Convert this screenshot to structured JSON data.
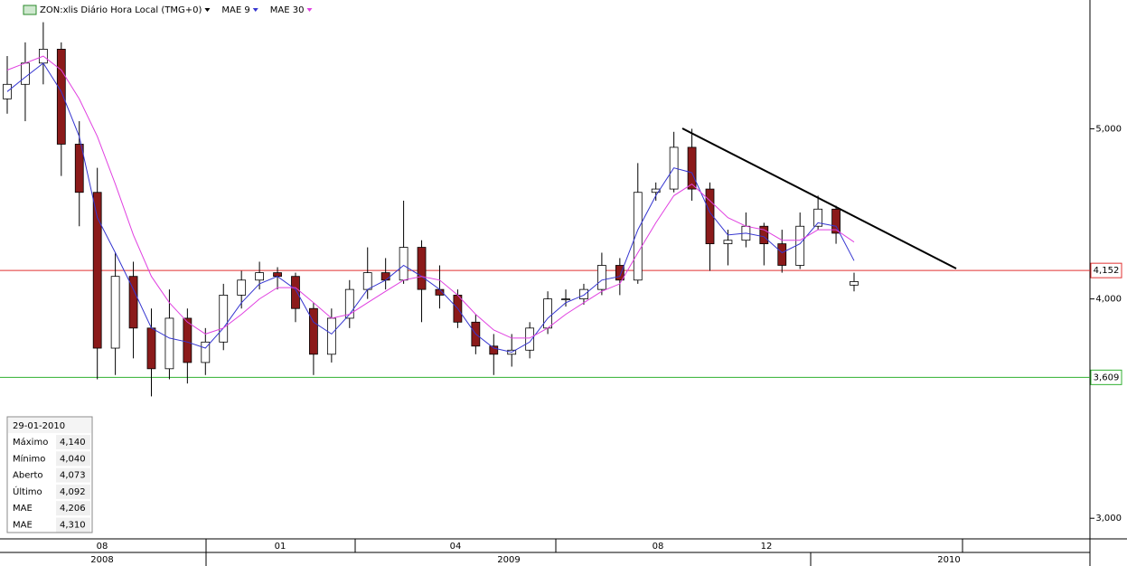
{
  "chart_data": {
    "type": "candlestick",
    "log_scale": true,
    "ylim": [
      2.92,
      5.92
    ],
    "yticks": [
      {
        "value": 3,
        "label": "3,000"
      },
      {
        "value": 4,
        "label": "4,000"
      },
      {
        "value": 5,
        "label": "5,000"
      }
    ],
    "series": [
      {
        "name": "ZON:xlis Diário Hora Local (TMG+0)",
        "up_color": "#ffffff",
        "down_color": "#8b1a1a",
        "open": [
          5.2,
          5.3,
          5.45,
          5.55,
          4.9,
          4.6,
          3.75,
          4.12,
          3.85,
          3.65,
          3.9,
          3.68,
          3.78,
          4.02,
          4.1,
          4.14,
          4.12,
          3.95,
          3.72,
          3.9,
          4.05,
          4.14,
          4.1,
          4.28,
          4.05,
          4.02,
          3.88,
          3.76,
          3.72,
          3.74,
          3.85,
          4.0,
          4.0,
          4.05,
          4.18,
          4.1,
          4.6,
          4.62,
          4.88,
          4.62,
          4.3,
          4.32,
          4.4,
          4.3,
          4.18,
          4.4,
          4.5,
          4.073
        ],
        "high": [
          5.5,
          5.6,
          5.75,
          5.6,
          5.05,
          4.75,
          4.25,
          4.2,
          3.95,
          4.05,
          3.95,
          3.85,
          4.08,
          4.15,
          4.2,
          4.17,
          4.14,
          3.98,
          3.95,
          4.1,
          4.28,
          4.22,
          4.55,
          4.32,
          4.18,
          4.05,
          3.92,
          3.82,
          3.82,
          3.88,
          4.04,
          4.05,
          4.08,
          4.25,
          4.22,
          4.78,
          4.66,
          4.98,
          5.0,
          4.66,
          4.38,
          4.48,
          4.42,
          4.38,
          4.48,
          4.58,
          4.52,
          4.14
        ],
        "low": [
          5.1,
          5.05,
          5.3,
          4.7,
          4.4,
          3.6,
          3.62,
          3.7,
          3.52,
          3.6,
          3.58,
          3.62,
          3.74,
          3.95,
          4.05,
          4.05,
          3.88,
          3.62,
          3.68,
          3.85,
          4.0,
          4.05,
          4.08,
          3.88,
          3.95,
          3.85,
          3.72,
          3.62,
          3.66,
          3.7,
          3.82,
          3.96,
          3.97,
          4.02,
          4.02,
          4.08,
          4.55,
          4.6,
          4.55,
          4.15,
          4.18,
          4.28,
          4.18,
          4.14,
          4.16,
          4.38,
          4.3,
          4.04
        ],
        "close": [
          5.3,
          5.45,
          5.55,
          4.9,
          4.6,
          3.75,
          4.12,
          3.85,
          3.65,
          3.9,
          3.68,
          3.78,
          4.02,
          4.1,
          4.14,
          4.12,
          3.95,
          3.72,
          3.9,
          4.05,
          4.14,
          4.1,
          4.28,
          4.05,
          4.02,
          3.88,
          3.76,
          3.72,
          3.74,
          3.85,
          4.0,
          4.0,
          4.05,
          4.18,
          4.1,
          4.6,
          4.62,
          4.88,
          4.62,
          4.3,
          4.32,
          4.4,
          4.3,
          4.18,
          4.4,
          4.5,
          4.36,
          4.092
        ]
      },
      {
        "name": "MAE 9",
        "color": "#3535d0",
        "values": [
          5.25,
          5.35,
          5.45,
          5.25,
          4.95,
          4.45,
          4.25,
          4.05,
          3.85,
          3.8,
          3.78,
          3.75,
          3.85,
          3.98,
          4.08,
          4.12,
          4.05,
          3.88,
          3.82,
          3.92,
          4.05,
          4.1,
          4.18,
          4.12,
          4.05,
          3.95,
          3.82,
          3.75,
          3.73,
          3.78,
          3.9,
          3.98,
          4.02,
          4.1,
          4.12,
          4.38,
          4.58,
          4.75,
          4.72,
          4.48,
          4.35,
          4.36,
          4.34,
          4.25,
          4.3,
          4.42,
          4.4,
          4.206
        ]
      },
      {
        "name": "MAE 30",
        "color": "#e040e0",
        "values": [
          5.4,
          5.45,
          5.5,
          5.4,
          5.2,
          4.95,
          4.65,
          4.35,
          4.12,
          3.98,
          3.88,
          3.82,
          3.85,
          3.92,
          4.0,
          4.06,
          4.06,
          3.98,
          3.9,
          3.92,
          3.98,
          4.04,
          4.1,
          4.12,
          4.1,
          4.02,
          3.92,
          3.84,
          3.8,
          3.8,
          3.85,
          3.92,
          3.98,
          4.04,
          4.08,
          4.25,
          4.42,
          4.58,
          4.65,
          4.55,
          4.45,
          4.4,
          4.38,
          4.32,
          4.32,
          4.38,
          4.38,
          4.31
        ]
      }
    ],
    "hlines": [
      {
        "value": 4.152,
        "label": "4,152",
        "color": "#e03030"
      },
      {
        "value": 3.609,
        "label": "3,609",
        "color": "#30b030"
      }
    ],
    "month_labels": [
      "08",
      "01",
      "04",
      "08",
      "12"
    ],
    "year_labels": [
      "2008",
      "2009",
      "2010"
    ],
    "info_box": {
      "date": "29-01-2010",
      "rows": [
        [
          "Máximo",
          "4,140"
        ],
        [
          "Mínimo",
          "4,040"
        ],
        [
          "Aberto",
          "4,073"
        ],
        [
          "Último",
          "4,092"
        ],
        [
          "MAE",
          "4,206"
        ],
        [
          "MAE",
          "4,310"
        ]
      ]
    }
  }
}
